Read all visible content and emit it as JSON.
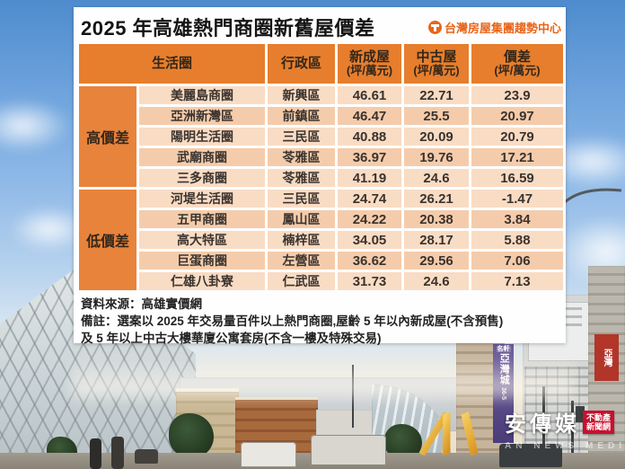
{
  "title": "2025 年高雄熱門商圈新舊屋價差",
  "brand": {
    "name": "台灣房屋集團趨勢中心",
    "color": "#E8651B",
    "icon": "taiwan-housing-logo"
  },
  "table_header": {
    "life_circle": "生活圈",
    "district": "行政區",
    "new_house": "新成屋",
    "old_house": "中古屋",
    "gap": "價差",
    "unit": "(坪/萬元)"
  },
  "chart_data": {
    "type": "table",
    "title": "2025 年高雄熱門商圈新舊屋價差",
    "columns": [
      "生活圈",
      "行政區",
      "新成屋 (坪/萬元)",
      "中古屋 (坪/萬元)",
      "價差 (坪/萬元)"
    ],
    "groups": [
      {
        "label": "高價差",
        "rows": [
          [
            "美麗島商圈",
            "新興區",
            "46.61",
            "22.71",
            "23.9"
          ],
          [
            "亞洲新灣區",
            "前鎮區",
            "46.47",
            "25.5",
            "20.97"
          ],
          [
            "陽明生活圈",
            "三民區",
            "40.88",
            "20.09",
            "20.79"
          ],
          [
            "武廟商圈",
            "苓雅區",
            "36.97",
            "19.76",
            "17.21"
          ],
          [
            "三多商圈",
            "苓雅區",
            "41.19",
            "24.6",
            "16.59"
          ]
        ]
      },
      {
        "label": "低價差",
        "rows": [
          [
            "河堤生活圈",
            "三民區",
            "24.74",
            "26.21",
            "-1.47"
          ],
          [
            "五甲商圈",
            "鳳山區",
            "24.22",
            "20.38",
            "3.84"
          ],
          [
            "高大特區",
            "楠梓區",
            "34.05",
            "28.17",
            "5.88"
          ],
          [
            "巨蛋商圈",
            "左營區",
            "36.62",
            "29.56",
            "7.06"
          ],
          [
            "仁雄八卦寮",
            "仁武區",
            "31.73",
            "24.6",
            "7.13"
          ]
        ]
      }
    ],
    "colors": {
      "header": "#E67E2D",
      "group_cell": "#E8833B",
      "row": "#F9DCC4",
      "row_alt": "#F5CCAB"
    }
  },
  "footnotes": {
    "source": "資料來源：高雄實價網",
    "note_line1": "備註：選案以 2025 年交易量百件以上熱門商圈,屋齡 5 年以內新成屋(不含預售)",
    "note_line2": "及 5 年以上中古大樓華廈公寓套房(不含一樓及特殊交易)"
  },
  "watermark": {
    "name": "安傳媒",
    "badge_line1": "不動產",
    "badge_line2": "新聞網",
    "subtitle": "AN NEWS MEDIA",
    "logo_color": "#E8A93D"
  },
  "background_signs": {
    "banner_top": "名軒",
    "banner_main": "亞灣城",
    "banner_digits": "36-5",
    "red_sign": "亞灣"
  }
}
